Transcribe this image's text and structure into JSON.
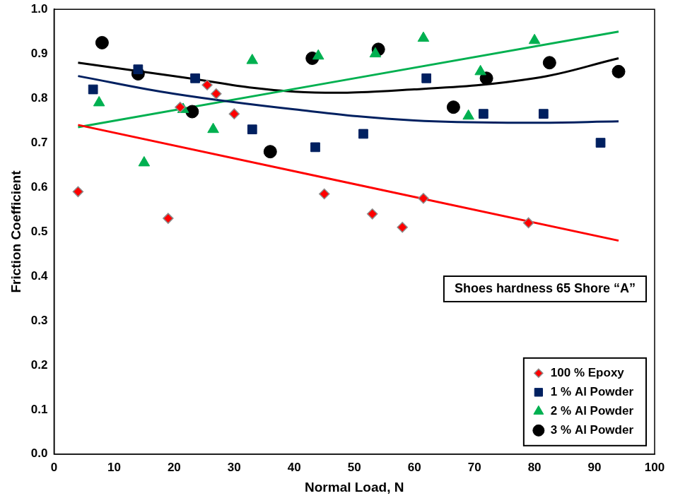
{
  "chart_data": {
    "type": "scatter",
    "x_label": "Normal Load, N",
    "y_label": "Friction Coefficient",
    "annotation": "Shoes hardness 65 Shore “A”",
    "xlim": [
      0,
      100
    ],
    "xticks": [
      0,
      10,
      20,
      30,
      40,
      50,
      60,
      70,
      80,
      90,
      100
    ],
    "ylim": [
      0,
      1
    ],
    "yticks": [
      {
        "value": 0,
        "label": "0.0"
      },
      0.1,
      0.2,
      0.3,
      0.4,
      0.5,
      0.6,
      0.7,
      0.8,
      0.9,
      {
        "value": 1,
        "label": "1.0"
      }
    ],
    "grid": false,
    "legend": "lower right",
    "series": [
      {
        "name": "100 % Epoxy",
        "color": "#ff0000",
        "marker": "diamond",
        "x": [
          4,
          19,
          21,
          25.5,
          27,
          30,
          45,
          53,
          58,
          61.5,
          79
        ],
        "values": [
          0.59,
          0.53,
          0.78,
          0.83,
          0.81,
          0.765,
          0.585,
          0.54,
          0.51,
          0.575,
          0.52
        ],
        "trend": {
          "line_style": "solid",
          "x": [
            4,
            94
          ],
          "values": [
            0.74,
            0.48
          ]
        }
      },
      {
        "name": "1 % Al Powder",
        "color": "#002060",
        "marker": "square",
        "x": [
          6.5,
          14,
          23.5,
          33,
          43.5,
          51.5,
          62,
          71.5,
          81.5,
          91
        ],
        "values": [
          0.82,
          0.865,
          0.845,
          0.73,
          0.69,
          0.72,
          0.845,
          0.765,
          0.765,
          0.7
        ],
        "trend": {
          "line_style": "solid",
          "x": [
            4,
            20,
            40,
            60,
            80,
            94
          ],
          "values": [
            0.85,
            0.81,
            0.775,
            0.75,
            0.745,
            0.748
          ]
        }
      },
      {
        "name": "2 % Al Powder",
        "color": "#00b050",
        "marker": "triangle",
        "x": [
          7.5,
          15,
          21.5,
          26.5,
          33,
          44,
          53.5,
          61.5,
          69,
          71,
          80
        ],
        "values": [
          0.79,
          0.655,
          0.775,
          0.73,
          0.885,
          0.895,
          0.9,
          0.935,
          0.76,
          0.86,
          0.93
        ],
        "trend": {
          "line_style": "solid",
          "x": [
            4,
            94
          ],
          "values": [
            0.735,
            0.95
          ]
        }
      },
      {
        "name": "3 % Al Powder",
        "color": "#000000",
        "marker": "circle",
        "x": [
          8,
          14,
          23,
          36,
          43,
          54,
          66.5,
          72,
          82.5,
          94
        ],
        "values": [
          0.925,
          0.855,
          0.77,
          0.68,
          0.89,
          0.91,
          0.78,
          0.845,
          0.88,
          0.86
        ],
        "trend": {
          "line_style": "solid",
          "x": [
            4,
            20,
            40,
            60,
            80,
            94
          ],
          "values": [
            0.88,
            0.85,
            0.815,
            0.82,
            0.845,
            0.89
          ]
        }
      }
    ]
  }
}
